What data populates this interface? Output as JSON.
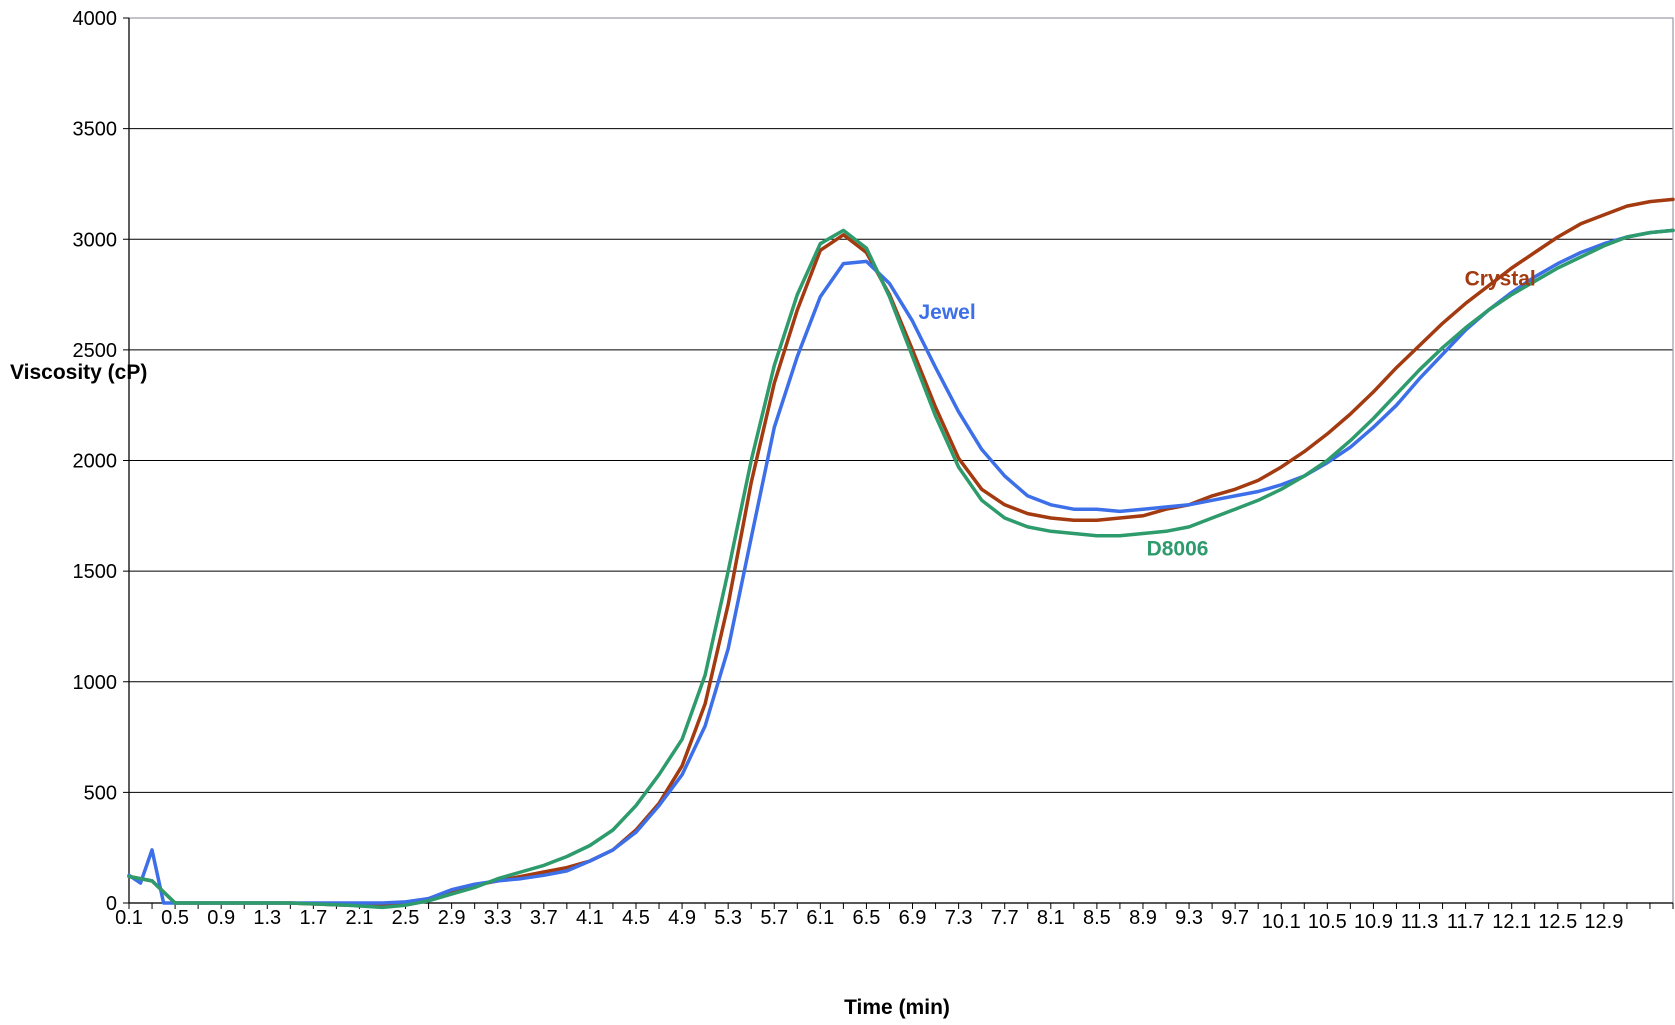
{
  "chart_data": {
    "type": "line",
    "xlabel": "Time (min)",
    "ylabel": "Viscosity (cP)",
    "ylim": [
      0,
      4000
    ],
    "yticks": [
      0,
      500,
      1000,
      1500,
      2000,
      2500,
      3000,
      3500,
      4000
    ],
    "x_start": 0.1,
    "x_step": 0.2,
    "x_count": 68,
    "x_tick_labels": [
      "0.1",
      "0.5",
      "0.9",
      "1.3",
      "1.7",
      "2.1",
      "2.5",
      "2.9",
      "3.3",
      "3.7",
      "4.1",
      "4.5",
      "4.9",
      "5.3",
      "5.7",
      "6.1",
      "6.5",
      "6.9",
      "7.3",
      "7.7",
      "8.1",
      "8.5",
      "8.9",
      "9.3",
      "9.7",
      "10.1",
      "10.5",
      "10.9",
      "11.3",
      "11.7",
      "12.1",
      "12.5",
      "12.9"
    ],
    "grid": "horizontal",
    "legend": "inline labels",
    "series": [
      {
        "name": "Crystal",
        "color": "#A33A10",
        "x": [
          0.1,
          0.3,
          0.5,
          0.7,
          1.0,
          1.5,
          2.0,
          2.3,
          2.5,
          2.7,
          2.9,
          3.1,
          3.3,
          3.5,
          3.7,
          3.9,
          4.1,
          4.3,
          4.5,
          4.7,
          4.9,
          5.1,
          5.3,
          5.5,
          5.7,
          5.9,
          6.1,
          6.3,
          6.5,
          6.7,
          6.9,
          7.1,
          7.3,
          7.5,
          7.7,
          7.9,
          8.1,
          8.3,
          8.5,
          8.7,
          8.9,
          9.1,
          9.3,
          9.5,
          9.7,
          9.9,
          10.1,
          10.3,
          10.5,
          10.7,
          10.9,
          11.1,
          11.3,
          11.5,
          11.7,
          11.9,
          12.1,
          12.3,
          12.5,
          12.7,
          12.9,
          13.1,
          13.3,
          13.5
        ],
        "y": [
          120,
          100,
          0,
          0,
          0,
          0,
          -10,
          -10,
          0,
          20,
          50,
          80,
          100,
          120,
          140,
          160,
          190,
          240,
          330,
          450,
          620,
          900,
          1350,
          1900,
          2350,
          2680,
          2950,
          3020,
          2940,
          2750,
          2500,
          2240,
          2010,
          1870,
          1800,
          1760,
          1740,
          1730,
          1730,
          1740,
          1750,
          1780,
          1800,
          1840,
          1870,
          1910,
          1970,
          2040,
          2120,
          2210,
          2310,
          2420,
          2520,
          2620,
          2710,
          2790,
          2870,
          2940,
          3010,
          3070,
          3110,
          3150,
          3170,
          3180
        ]
      },
      {
        "name": "Jewel",
        "color": "#3C6FE8",
        "x": [
          0.1,
          0.2,
          0.3,
          0.4,
          0.5,
          0.7,
          1.0,
          1.5,
          2.0,
          2.3,
          2.5,
          2.7,
          2.9,
          3.1,
          3.3,
          3.5,
          3.7,
          3.9,
          4.1,
          4.3,
          4.5,
          4.7,
          4.9,
          5.1,
          5.3,
          5.5,
          5.7,
          5.9,
          6.1,
          6.3,
          6.5,
          6.7,
          6.9,
          7.1,
          7.3,
          7.5,
          7.7,
          7.9,
          8.1,
          8.3,
          8.5,
          8.7,
          8.9,
          9.1,
          9.3,
          9.5,
          9.7,
          9.9,
          10.1,
          10.3,
          10.5,
          10.7,
          10.9,
          11.1,
          11.3,
          11.5,
          11.7,
          11.9,
          12.1,
          12.3,
          12.5,
          12.7,
          12.9,
          13.1,
          13.3,
          13.5
        ],
        "y": [
          125,
          90,
          240,
          0,
          0,
          0,
          0,
          0,
          0,
          0,
          5,
          20,
          60,
          85,
          100,
          110,
          125,
          145,
          190,
          240,
          320,
          440,
          580,
          800,
          1150,
          1650,
          2150,
          2470,
          2740,
          2890,
          2900,
          2800,
          2630,
          2420,
          2220,
          2050,
          1930,
          1840,
          1800,
          1780,
          1780,
          1770,
          1780,
          1790,
          1800,
          1820,
          1840,
          1860,
          1890,
          1930,
          1990,
          2060,
          2150,
          2250,
          2370,
          2480,
          2590,
          2680,
          2760,
          2830,
          2890,
          2940,
          2980,
          3010,
          3030,
          3040
        ]
      },
      {
        "name": "D8006",
        "color": "#2E9B6C",
        "x": [
          0.1,
          0.3,
          0.5,
          0.7,
          1.0,
          1.5,
          2.0,
          2.3,
          2.5,
          2.7,
          2.9,
          3.1,
          3.3,
          3.5,
          3.7,
          3.9,
          4.1,
          4.3,
          4.5,
          4.7,
          4.9,
          5.1,
          5.3,
          5.5,
          5.7,
          5.9,
          6.1,
          6.3,
          6.5,
          6.7,
          6.9,
          7.1,
          7.3,
          7.5,
          7.7,
          7.9,
          8.1,
          8.3,
          8.5,
          8.7,
          8.9,
          9.1,
          9.3,
          9.5,
          9.7,
          9.9,
          10.1,
          10.3,
          10.5,
          10.7,
          10.9,
          11.1,
          11.3,
          11.5,
          11.7,
          11.9,
          12.1,
          12.3,
          12.5,
          12.7,
          12.9,
          13.1,
          13.3,
          13.5
        ],
        "y": [
          120,
          100,
          0,
          0,
          0,
          0,
          -10,
          -20,
          -10,
          10,
          40,
          70,
          110,
          140,
          170,
          210,
          260,
          330,
          440,
          580,
          740,
          1030,
          1500,
          2000,
          2430,
          2750,
          2980,
          3040,
          2960,
          2740,
          2470,
          2200,
          1970,
          1820,
          1740,
          1700,
          1680,
          1670,
          1660,
          1660,
          1670,
          1680,
          1700,
          1740,
          1780,
          1820,
          1870,
          1930,
          2000,
          2090,
          2190,
          2300,
          2410,
          2510,
          2600,
          2680,
          2750,
          2810,
          2870,
          2920,
          2970,
          3010,
          3030,
          3040
        ]
      }
    ],
    "annotations": [
      {
        "text": "Crystal",
        "x": 12.0,
        "y": 2790,
        "color": "#A33A10"
      },
      {
        "text": "Jewel",
        "x": 7.2,
        "y": 2640,
        "color": "#3C6FE8"
      },
      {
        "text": "D8006",
        "x": 9.2,
        "y": 1570,
        "color": "#2E9B6C"
      }
    ]
  }
}
